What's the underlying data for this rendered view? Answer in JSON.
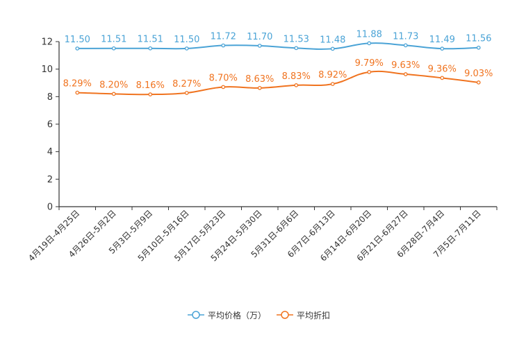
{
  "chart_data": {
    "type": "line",
    "categories": [
      "4月19日-4月25日",
      "4月26日-5月2日",
      "5月3日-5月9日",
      "5月10日-5月16日",
      "5月17日-5月23日",
      "5月24日-5月30日",
      "5月31日-6月6日",
      "6月7日-6月13日",
      "6月14日-6月20日",
      "6月21日-6月27日",
      "6月28日-7月4日",
      "7月5日-7月11日"
    ],
    "ylim": [
      0,
      12
    ],
    "yticks": [
      0,
      2,
      4,
      6,
      8,
      10,
      12
    ],
    "series": [
      {
        "name": "平均价格（万）",
        "color": "#4aa3d6",
        "values": [
          11.5,
          11.51,
          11.51,
          11.5,
          11.72,
          11.7,
          11.53,
          11.48,
          11.88,
          11.73,
          11.49,
          11.56
        ],
        "labels": [
          "11.50",
          "11.51",
          "11.51",
          "11.50",
          "11.72",
          "11.70",
          "11.53",
          "11.48",
          "11.88",
          "11.73",
          "11.49",
          "11.56"
        ]
      },
      {
        "name": "平均折扣",
        "color": "#f0731f",
        "values": [
          8.29,
          8.2,
          8.16,
          8.27,
          8.7,
          8.63,
          8.83,
          8.92,
          9.79,
          9.63,
          9.36,
          9.03
        ],
        "labels": [
          "8.29%",
          "8.20%",
          "8.16%",
          "8.27%",
          "8.70%",
          "8.63%",
          "8.83%",
          "8.92%",
          "9.79%",
          "9.63%",
          "9.36%",
          "9.03%"
        ]
      }
    ],
    "legend_position": "bottom-center",
    "grid": false
  }
}
